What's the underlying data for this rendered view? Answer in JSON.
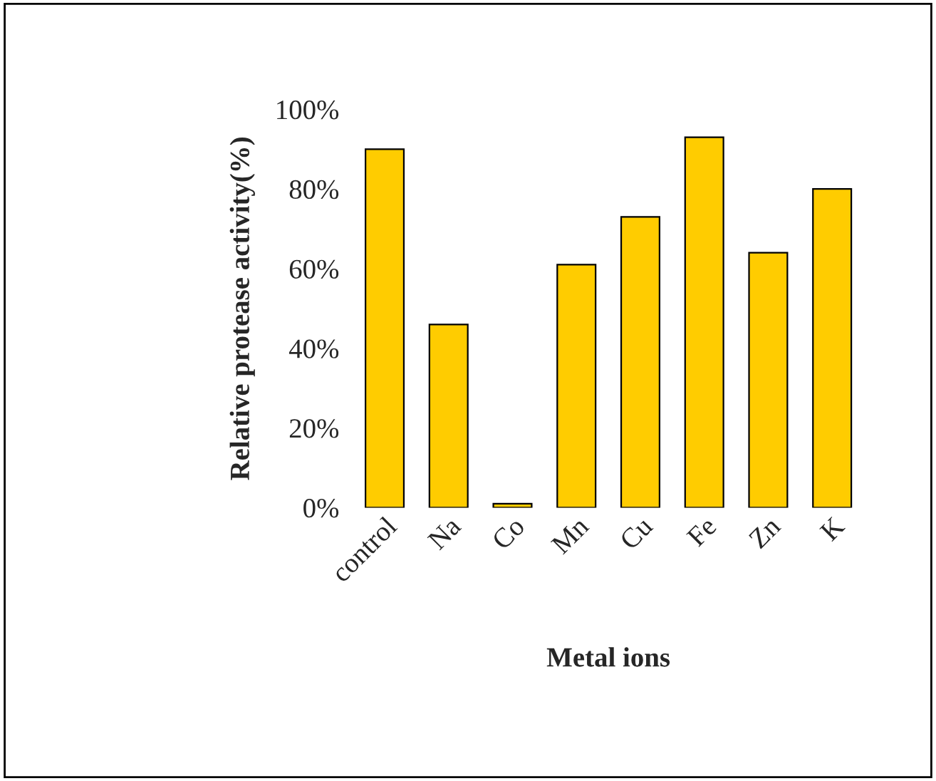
{
  "chart_data": {
    "type": "bar",
    "xlabel": "Metal ions",
    "ylabel": "Relative protease activity(%)",
    "categories": [
      "control",
      "Na",
      "Co",
      "Mn",
      "Cu",
      "Fe",
      "Zn",
      "K"
    ],
    "values": [
      90,
      46,
      1,
      61,
      73,
      93,
      64,
      80
    ],
    "color": "#ffcc00",
    "ylim": [
      0,
      100
    ],
    "yticks": [
      {
        "value": 0,
        "label": "0%"
      },
      {
        "value": 20,
        "label": "20%"
      },
      {
        "value": 40,
        "label": "40%"
      },
      {
        "value": 60,
        "label": "60%"
      },
      {
        "value": 80,
        "label": "80%"
      },
      {
        "value": 100,
        "label": "100%"
      }
    ],
    "grid": false,
    "legend": false
  }
}
